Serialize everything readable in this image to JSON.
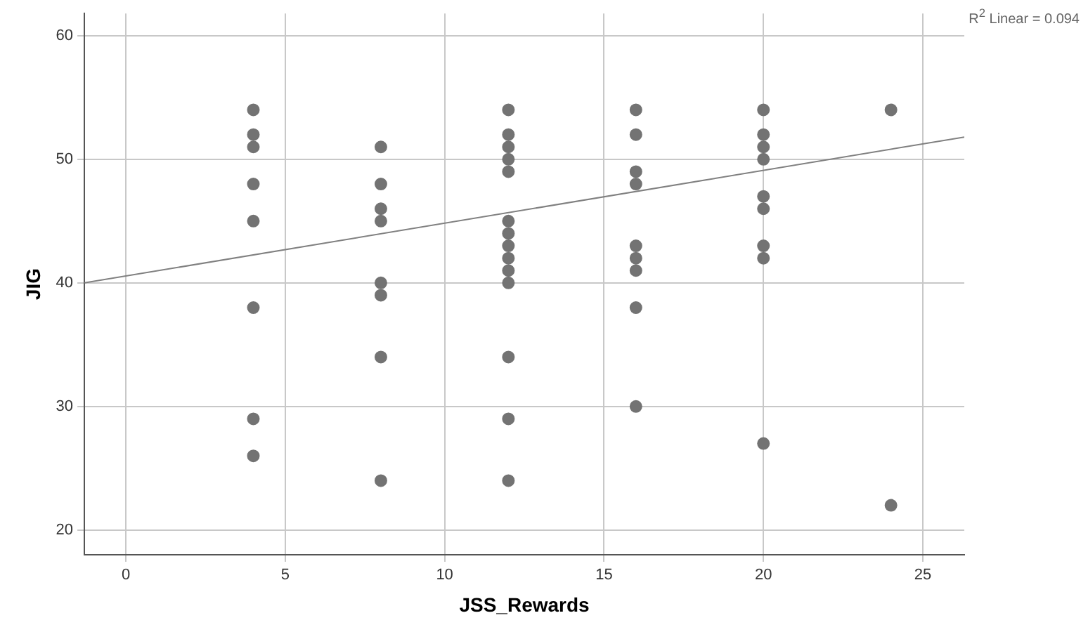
{
  "chart_data": {
    "type": "scatter",
    "xlabel": "JSS_Rewards",
    "ylabel": "JIG",
    "annotations": [
      "R$^{2}$ Linear = 0.094"
    ],
    "xlim": [
      -1.3,
      26.3
    ],
    "xticks": [
      0,
      5,
      10,
      15,
      20,
      25
    ],
    "ylim": [
      18,
      61.8
    ],
    "yticks": [
      20,
      30,
      40,
      50,
      60
    ],
    "grid": true,
    "legend": false,
    "series": [
      {
        "color": "#737373",
        "marker": "circle",
        "x": [
          4,
          4,
          4,
          4,
          4,
          4,
          4,
          4,
          8,
          8,
          8,
          8,
          8,
          8,
          8,
          8,
          12,
          12,
          12,
          12,
          12,
          12,
          12,
          12,
          12,
          12,
          12,
          12,
          12,
          12,
          16,
          16,
          16,
          16,
          16,
          16,
          16,
          16,
          16,
          20,
          20,
          20,
          20,
          20,
          20,
          20,
          20,
          20,
          24,
          24
        ],
        "values": [
          54,
          52,
          51,
          48,
          45,
          38,
          29,
          26,
          51,
          48,
          46,
          45,
          40,
          39,
          34,
          24,
          54,
          52,
          51,
          50,
          49,
          45,
          44,
          43,
          42,
          41,
          40,
          34,
          29,
          24,
          54,
          52,
          49,
          48,
          43,
          42,
          41,
          38,
          30,
          54,
          52,
          51,
          50,
          47,
          46,
          43,
          42,
          27,
          54,
          22
        ]
      },
      {
        "type": "line",
        "color": "#808080",
        "marker": "none",
        "x": [
          -1.3,
          26.3
        ],
        "values": [
          40,
          51.8
        ]
      }
    ]
  }
}
